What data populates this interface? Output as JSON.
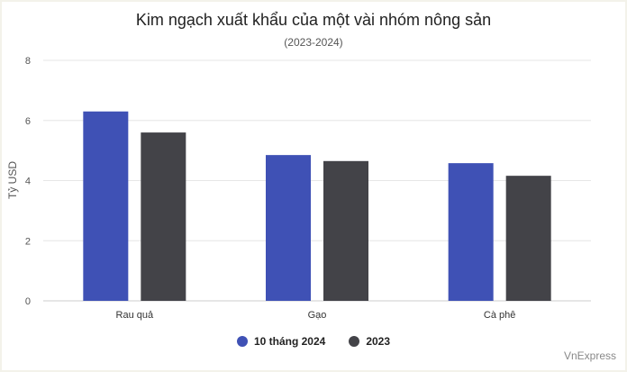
{
  "header": {
    "title": "Kim ngạch xuất khẩu của một vài nhóm nông sản",
    "subtitle": "(2023-2024)"
  },
  "credit": "VnExpress",
  "chart_data": {
    "type": "bar",
    "title": "Kim ngạch xuất khẩu của một vài nhóm nông sản",
    "subtitle": "(2023-2024)",
    "xlabel": "",
    "ylabel": "Tỷ USD",
    "ylim": [
      0,
      8
    ],
    "yticks": [
      0,
      2,
      4,
      6,
      8
    ],
    "grid": true,
    "legend_position": "bottom",
    "categories": [
      "Rau quả",
      "Gạo",
      "Cà phê"
    ],
    "series": [
      {
        "name": "10 tháng 2024",
        "color": "#3f51b5",
        "values": [
          6.3,
          4.85,
          4.58
        ]
      },
      {
        "name": "2023",
        "color": "#434348",
        "values": [
          5.6,
          4.65,
          4.16
        ]
      }
    ]
  }
}
